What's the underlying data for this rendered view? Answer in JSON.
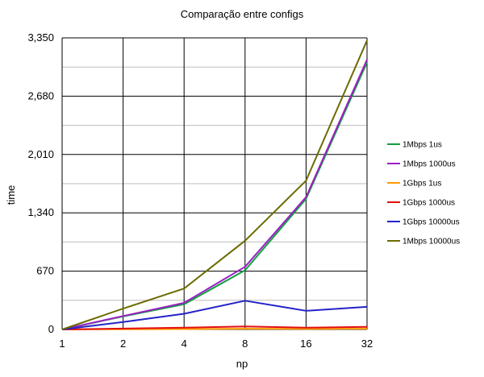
{
  "chart_data": {
    "type": "line",
    "title": "Comparação entre configs",
    "xlabel": "np",
    "ylabel": "time",
    "categories": [
      "1",
      "2",
      "4",
      "8",
      "16",
      "32"
    ],
    "ylim": [
      0,
      3350
    ],
    "yticks": [
      0,
      670,
      1340,
      2010,
      2680,
      3350
    ],
    "ytick_labels": [
      "0",
      "670",
      "1,340",
      "2,010",
      "2,680",
      "3,350"
    ],
    "grid": true,
    "legend": "right",
    "series": [
      {
        "name": "1Mbps 1us",
        "color": "#109f40",
        "values": [
          0,
          150,
          290,
          680,
          1500,
          3070
        ]
      },
      {
        "name": "1Mbps 1000us",
        "color": "#9b1fc4",
        "values": [
          0,
          155,
          305,
          720,
          1520,
          3100
        ]
      },
      {
        "name": "1Gbps 1us",
        "color": "#ff9900",
        "values": [
          0,
          3,
          5,
          8,
          7,
          8
        ]
      },
      {
        "name": "1Gbps 1000us",
        "color": "#e01010",
        "values": [
          0,
          10,
          20,
          35,
          20,
          30
        ]
      },
      {
        "name": "1Gbps 10000us",
        "color": "#2323c8",
        "values": [
          0,
          85,
          180,
          330,
          215,
          260
        ]
      },
      {
        "name": "1Mbps 10000us",
        "color": "#6b6b00",
        "values": [
          0,
          240,
          470,
          1020,
          1710,
          3320
        ]
      }
    ]
  }
}
